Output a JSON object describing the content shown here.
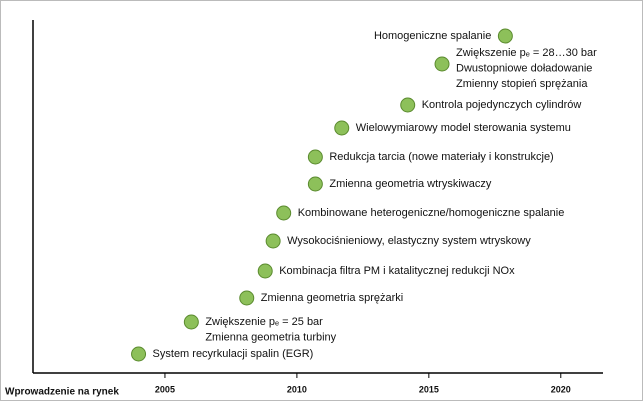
{
  "chart_data": {
    "type": "timeline",
    "x_label": "Wprowadzenie na rynek",
    "categories": [
      [
        "Homogeniczne spalanie"
      ],
      [
        "Zwiększenie pₑ = 28…30 bar",
        "Dwustopniowe doładowanie",
        "Zmienny stopień sprężania"
      ],
      [
        "Kontrola pojedynczych cylindrów"
      ],
      [
        "Wielowymiarowy model sterowania systemu"
      ],
      [
        "Redukcja tarcia (nowe materiały i konstrukcje)"
      ],
      [
        "Zmienna geometria wtryskiwaczy"
      ],
      [
        "Kombinowane heterogeniczne/homogeniczne spalanie"
      ],
      [
        "Wysokociśnieniowy, elastyczny system wtryskowy"
      ],
      [
        "Kombinacja filtra PM i katalitycznej redukcji NOx"
      ],
      [
        "Zmienna geometria sprężarki"
      ],
      [
        "Zwiększenie pₑ = 25 bar",
        "Zmienna geometria turbiny"
      ],
      [
        "System recyrkulacji spalin (EGR)"
      ]
    ],
    "values": [
      2017.9,
      2015.5,
      2014.2,
      2011.7,
      2010.7,
      2010.7,
      2009.5,
      2009.1,
      2008.8,
      2008.1,
      2006.0,
      2004.0
    ],
    "color": "#8dc05a",
    "xlim": [
      2000,
      2021.6
    ],
    "xticks": [
      2005,
      2010,
      2015,
      2020
    ]
  }
}
